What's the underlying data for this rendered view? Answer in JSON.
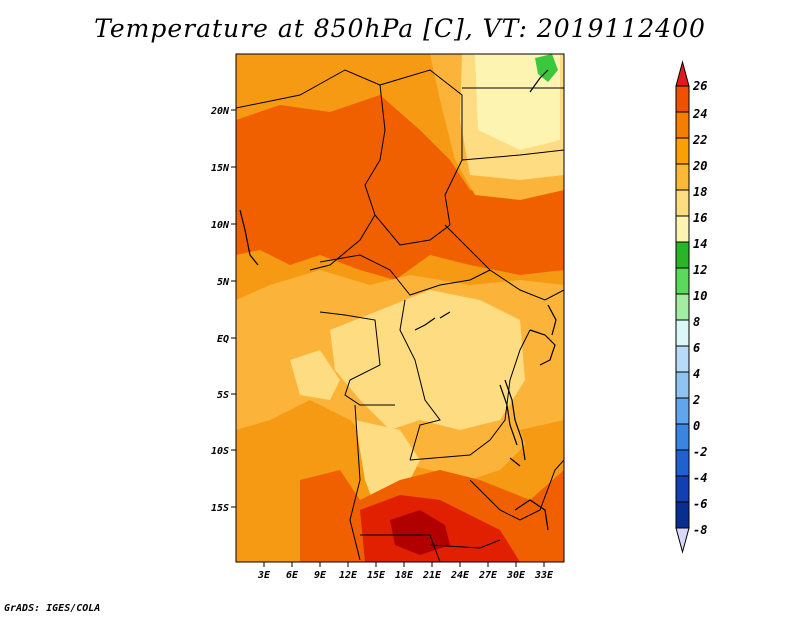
{
  "title": "Temperature at 850hPa [C], VT: 2019112400",
  "credit": "GrADS: IGES/COLA",
  "map": {
    "lon_labels": [
      "3E",
      "6E",
      "9E",
      "12E",
      "15E",
      "18E",
      "21E",
      "24E",
      "27E",
      "30E",
      "33E"
    ],
    "lat_labels": [
      "20N",
      "15N",
      "10N",
      "5N",
      "EQ",
      "5S",
      "10S",
      "15S"
    ],
    "colors": {
      "c22_24": "#f06000",
      "c20_22": "#f59a12",
      "c18_20": "#fbb33a",
      "c16_18": "#fddc82",
      "c14_16": "#fef4b2",
      "c24_26": "#e02000",
      "c26p": "#b00000",
      "green": "#3cc83c"
    }
  },
  "colorbar": {
    "labels": [
      "26",
      "24",
      "22",
      "20",
      "18",
      "16",
      "14",
      "12",
      "10",
      "8",
      "6",
      "4",
      "2",
      "0",
      "-2",
      "-4",
      "-6",
      "-8"
    ],
    "colors": [
      "#e31a1c",
      "#f05000",
      "#f57d00",
      "#f9a100",
      "#fbb935",
      "#fddc82",
      "#fef4b2",
      "#2ab42a",
      "#5bd95b",
      "#a3eda3",
      "#dcf7f7",
      "#b7dcf7",
      "#8fc4f2",
      "#5fa6ea",
      "#3b84e0",
      "#2160cf",
      "#1140b5",
      "#072f8f",
      "#0a1a78"
    ]
  }
}
